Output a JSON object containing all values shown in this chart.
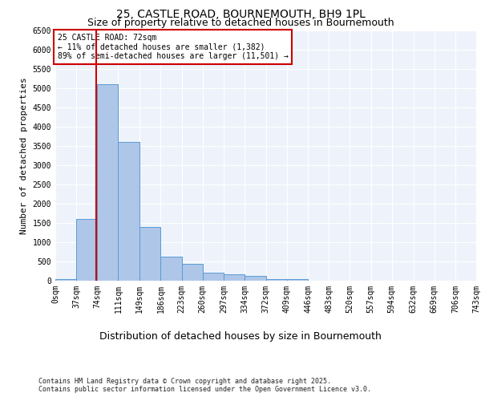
{
  "title_line1": "25, CASTLE ROAD, BOURNEMOUTH, BH9 1PL",
  "title_line2": "Size of property relative to detached houses in Bournemouth",
  "xlabel": "Distribution of detached houses by size in Bournemouth",
  "ylabel": "Number of detached properties",
  "footer_line1": "Contains HM Land Registry data © Crown copyright and database right 2025.",
  "footer_line2": "Contains public sector information licensed under the Open Government Licence v3.0.",
  "annotation_title": "25 CASTLE ROAD: 72sqm",
  "annotation_line2": "← 11% of detached houses are smaller (1,382)",
  "annotation_line3": "89% of semi-detached houses are larger (11,501) →",
  "property_size_sqm": 72,
  "bar_bins": [
    0,
    37,
    74,
    111,
    149,
    186,
    223,
    260,
    297,
    334,
    372,
    409,
    446,
    483,
    520,
    557,
    594,
    632,
    669,
    706,
    743
  ],
  "bar_values": [
    50,
    1600,
    5100,
    3600,
    1400,
    630,
    430,
    200,
    170,
    120,
    50,
    50,
    0,
    0,
    0,
    0,
    0,
    0,
    0,
    0
  ],
  "bar_color": "#aec6e8",
  "bar_edge_color": "#5b9bd5",
  "vline_color": "#cc0000",
  "vline_x": 72,
  "ylim": [
    0,
    6500
  ],
  "yticks": [
    0,
    500,
    1000,
    1500,
    2000,
    2500,
    3000,
    3500,
    4000,
    4500,
    5000,
    5500,
    6000,
    6500
  ],
  "bg_color": "#eef3fb",
  "grid_color": "#ffffff",
  "annotation_box_color": "#ffffff",
  "annotation_box_edge": "#cc0000",
  "tick_labels": [
    "0sqm",
    "37sqm",
    "74sqm",
    "111sqm",
    "149sqm",
    "186sqm",
    "223sqm",
    "260sqm",
    "297sqm",
    "334sqm",
    "372sqm",
    "409sqm",
    "446sqm",
    "483sqm",
    "520sqm",
    "557sqm",
    "594sqm",
    "632sqm",
    "669sqm",
    "706sqm",
    "743sqm"
  ],
  "title1_fontsize": 10,
  "title2_fontsize": 9,
  "ylabel_fontsize": 8,
  "xlabel_fontsize": 9,
  "tick_fontsize": 7,
  "ytick_fontsize": 7,
  "footer_fontsize": 6,
  "annot_fontsize": 7
}
